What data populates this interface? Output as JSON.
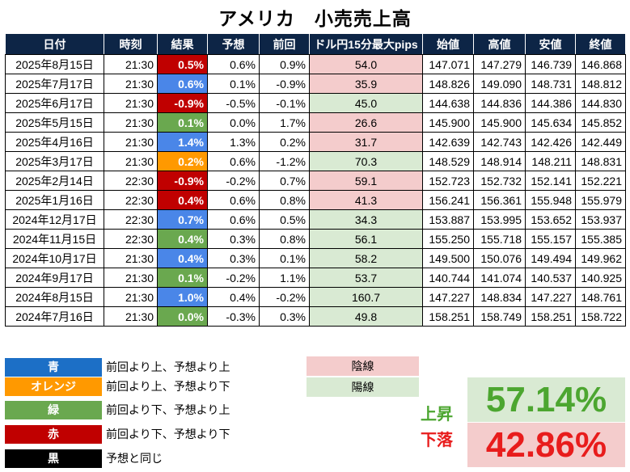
{
  "title": "アメリカ　小売売上高",
  "headers": [
    "日付",
    "時刻",
    "結果",
    "予想",
    "前回",
    "ドル円15分最大pips",
    "始値",
    "高値",
    "安値",
    "終値"
  ],
  "colors": {
    "header_bg": "#0d2546",
    "blue": "#4a86e8",
    "orange": "#ff9900",
    "green": "#6aa84f",
    "red": "#c00000",
    "black": "#000000",
    "yin_bg": "#f4cccc",
    "yang_bg": "#d9ead3",
    "up_text": "#4ca630",
    "down_text": "#e81c1c",
    "legend_blue": "#1c6fc6",
    "legend_orange": "#ff9900",
    "legend_green": "#6aa84f",
    "legend_red": "#c00000"
  },
  "rows": [
    {
      "date": "2025年8月15日",
      "time": "21:30",
      "result": "0.5%",
      "result_color": "red",
      "forecast": "0.6%",
      "previous": "0.9%",
      "pips": "54.0",
      "pips_type": "yin",
      "open": "147.071",
      "high": "147.279",
      "low": "146.739",
      "close": "146.868"
    },
    {
      "date": "2025年7月17日",
      "time": "21:30",
      "result": "0.6%",
      "result_color": "blue",
      "forecast": "0.1%",
      "previous": "-0.9%",
      "pips": "35.9",
      "pips_type": "yin",
      "open": "148.826",
      "high": "149.090",
      "low": "148.731",
      "close": "148.812"
    },
    {
      "date": "2025年6月17日",
      "time": "21:30",
      "result": "-0.9%",
      "result_color": "red",
      "forecast": "-0.5%",
      "previous": "-0.1%",
      "pips": "45.0",
      "pips_type": "yang",
      "open": "144.638",
      "high": "144.836",
      "low": "144.386",
      "close": "144.830"
    },
    {
      "date": "2025年5月15日",
      "time": "21:30",
      "result": "0.1%",
      "result_color": "green",
      "forecast": "0.0%",
      "previous": "1.7%",
      "pips": "26.6",
      "pips_type": "yin",
      "open": "145.900",
      "high": "145.900",
      "low": "145.634",
      "close": "145.852"
    },
    {
      "date": "2025年4月16日",
      "time": "21:30",
      "result": "1.4%",
      "result_color": "blue",
      "forecast": "1.3%",
      "previous": "0.2%",
      "pips": "31.7",
      "pips_type": "yin",
      "open": "142.639",
      "high": "142.743",
      "low": "142.426",
      "close": "142.449"
    },
    {
      "date": "2025年3月17日",
      "time": "21:30",
      "result": "0.2%",
      "result_color": "orange",
      "forecast": "0.6%",
      "previous": "-1.2%",
      "pips": "70.3",
      "pips_type": "yang",
      "open": "148.529",
      "high": "148.914",
      "low": "148.211",
      "close": "148.831"
    },
    {
      "date": "2025年2月14日",
      "time": "22:30",
      "result": "-0.9%",
      "result_color": "red",
      "forecast": "-0.2%",
      "previous": "0.7%",
      "pips": "59.1",
      "pips_type": "yin",
      "open": "152.723",
      "high": "152.732",
      "low": "152.141",
      "close": "152.221"
    },
    {
      "date": "2025年1月16日",
      "time": "22:30",
      "result": "0.4%",
      "result_color": "red",
      "forecast": "0.6%",
      "previous": "0.8%",
      "pips": "41.3",
      "pips_type": "yin",
      "open": "156.241",
      "high": "156.361",
      "low": "155.948",
      "close": "155.979"
    },
    {
      "date": "2024年12月17日",
      "time": "22:30",
      "result": "0.7%",
      "result_color": "blue",
      "forecast": "0.6%",
      "previous": "0.5%",
      "pips": "34.3",
      "pips_type": "yang",
      "open": "153.887",
      "high": "153.995",
      "low": "153.652",
      "close": "153.937"
    },
    {
      "date": "2024年11月15日",
      "time": "22:30",
      "result": "0.4%",
      "result_color": "green",
      "forecast": "0.3%",
      "previous": "0.8%",
      "pips": "56.1",
      "pips_type": "yang",
      "open": "155.250",
      "high": "155.718",
      "low": "155.157",
      "close": "155.385"
    },
    {
      "date": "2024年10月17日",
      "time": "21:30",
      "result": "0.4%",
      "result_color": "blue",
      "forecast": "0.3%",
      "previous": "0.1%",
      "pips": "58.2",
      "pips_type": "yang",
      "open": "149.500",
      "high": "150.076",
      "low": "149.494",
      "close": "149.962"
    },
    {
      "date": "2024年9月17日",
      "time": "21:30",
      "result": "0.1%",
      "result_color": "green",
      "forecast": "-0.2%",
      "previous": "1.1%",
      "pips": "53.7",
      "pips_type": "yang",
      "open": "140.744",
      "high": "141.074",
      "low": "140.537",
      "close": "140.925"
    },
    {
      "date": "2024年8月15日",
      "time": "21:30",
      "result": "1.0%",
      "result_color": "blue",
      "forecast": "0.4%",
      "previous": "-0.2%",
      "pips": "160.7",
      "pips_type": "yang",
      "open": "147.227",
      "high": "148.834",
      "low": "147.227",
      "close": "148.761"
    },
    {
      "date": "2024年7月16日",
      "time": "21:30",
      "result": "0.0%",
      "result_color": "green",
      "forecast": "-0.3%",
      "previous": "0.3%",
      "pips": "49.8",
      "pips_type": "yang",
      "open": "158.251",
      "high": "158.749",
      "low": "158.251",
      "close": "158.722"
    }
  ],
  "legend": [
    {
      "label": "青",
      "color": "legend_blue",
      "desc": "前回より上、予想より上"
    },
    {
      "label": "オレンジ",
      "color": "legend_orange",
      "desc": "前回より上、予想より下"
    },
    {
      "label": "緑",
      "color": "legend_green",
      "desc": "前回より下、予想より上"
    },
    {
      "label": "赤",
      "color": "legend_red",
      "desc": "前回より下、予想より下"
    },
    {
      "label": "黒",
      "color": "black",
      "desc": "予想と同じ"
    }
  ],
  "candle_legend": {
    "yin": "陰線",
    "yang": "陽線"
  },
  "stats": {
    "up_label": "上昇",
    "up_value": "57.14%",
    "down_label": "下落",
    "down_value": "42.86%"
  }
}
